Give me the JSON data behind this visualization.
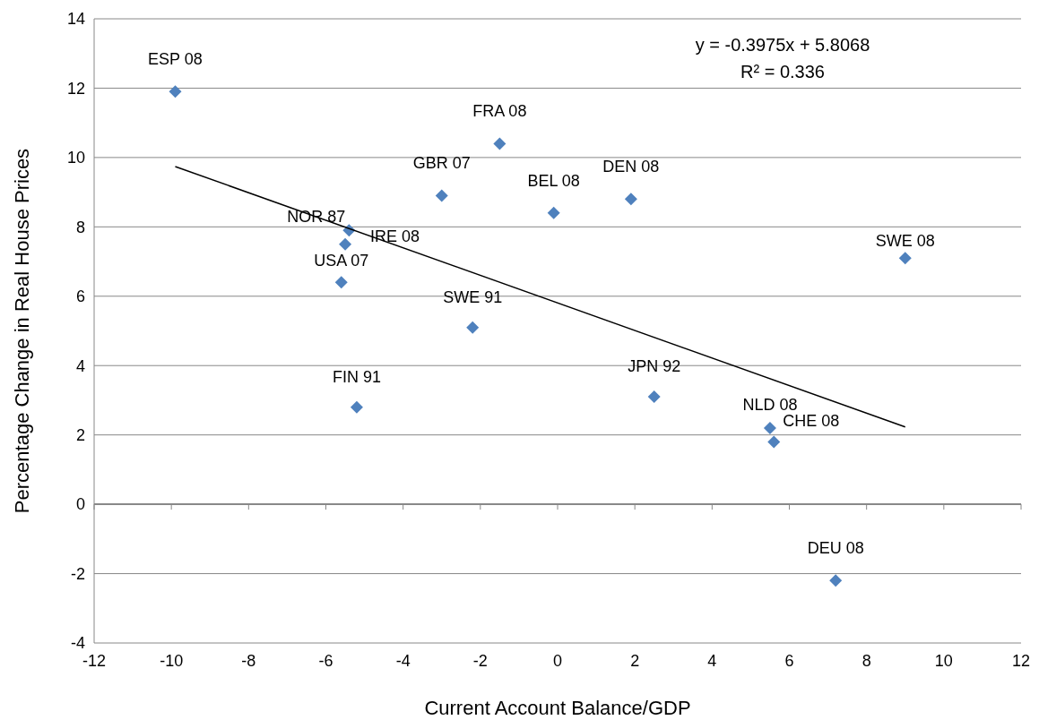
{
  "chart_data": {
    "type": "scatter",
    "xlabel": "Current Account Balance/GDP",
    "ylabel": "Percentage Change in Real House Prices",
    "xlim": [
      -12,
      12
    ],
    "xticks": [
      -12,
      -10,
      -8,
      -6,
      -4,
      -2,
      0,
      2,
      4,
      6,
      8,
      10,
      12
    ],
    "ylim": [
      -4,
      14
    ],
    "yticks": [
      -4,
      -2,
      0,
      2,
      4,
      6,
      8,
      10,
      12,
      14
    ],
    "grid": "y",
    "marker": "diamond",
    "series": [
      {
        "color": "#4f81bd",
        "x": [
          -9.9,
          -1.5,
          -3.0,
          -0.1,
          1.9,
          -5.4,
          -5.5,
          -5.6,
          -2.2,
          9.0,
          -5.2,
          2.5,
          5.5,
          5.6,
          7.2
        ],
        "values": [
          11.9,
          10.4,
          8.9,
          8.4,
          8.8,
          7.9,
          7.5,
          6.4,
          5.1,
          7.1,
          2.8,
          3.1,
          2.2,
          1.8,
          -2.2
        ]
      },
      {
        "type": "line",
        "color": "#000000",
        "marker": "none",
        "x": [
          -9.9,
          9.0
        ],
        "values": [
          9.74,
          2.23
        ]
      }
    ],
    "annotations": [
      {
        "text": "ESP 08",
        "x": -9.9,
        "y": 11.9
      },
      {
        "text": "FRA 08",
        "x": -1.5,
        "y": 10.4
      },
      {
        "text": "GBR 07",
        "x": -3.0,
        "y": 8.9
      },
      {
        "text": "BEL 08",
        "x": -0.1,
        "y": 8.4
      },
      {
        "text": "DEN 08",
        "x": 1.9,
        "y": 8.8
      },
      {
        "text": "NOR 87",
        "x": -5.4,
        "y": 7.9
      },
      {
        "text": "IRE 08",
        "x": -5.5,
        "y": 7.5
      },
      {
        "text": "USA 07",
        "x": -5.6,
        "y": 6.4
      },
      {
        "text": "SWE 91",
        "x": -2.2,
        "y": 5.1
      },
      {
        "text": "SWE 08",
        "x": 9.0,
        "y": 7.1
      },
      {
        "text": "FIN 91",
        "x": -5.2,
        "y": 2.8
      },
      {
        "text": "JPN 92",
        "x": 2.5,
        "y": 3.1
      },
      {
        "text": "NLD 08",
        "x": 5.5,
        "y": 2.2
      },
      {
        "text": "CHE 08",
        "x": 5.6,
        "y": 1.8
      },
      {
        "text": "DEU 08",
        "x": 7.2,
        "y": -2.2
      },
      "y = -0.3975x + 5.8068",
      "R² = 0.336"
    ]
  }
}
